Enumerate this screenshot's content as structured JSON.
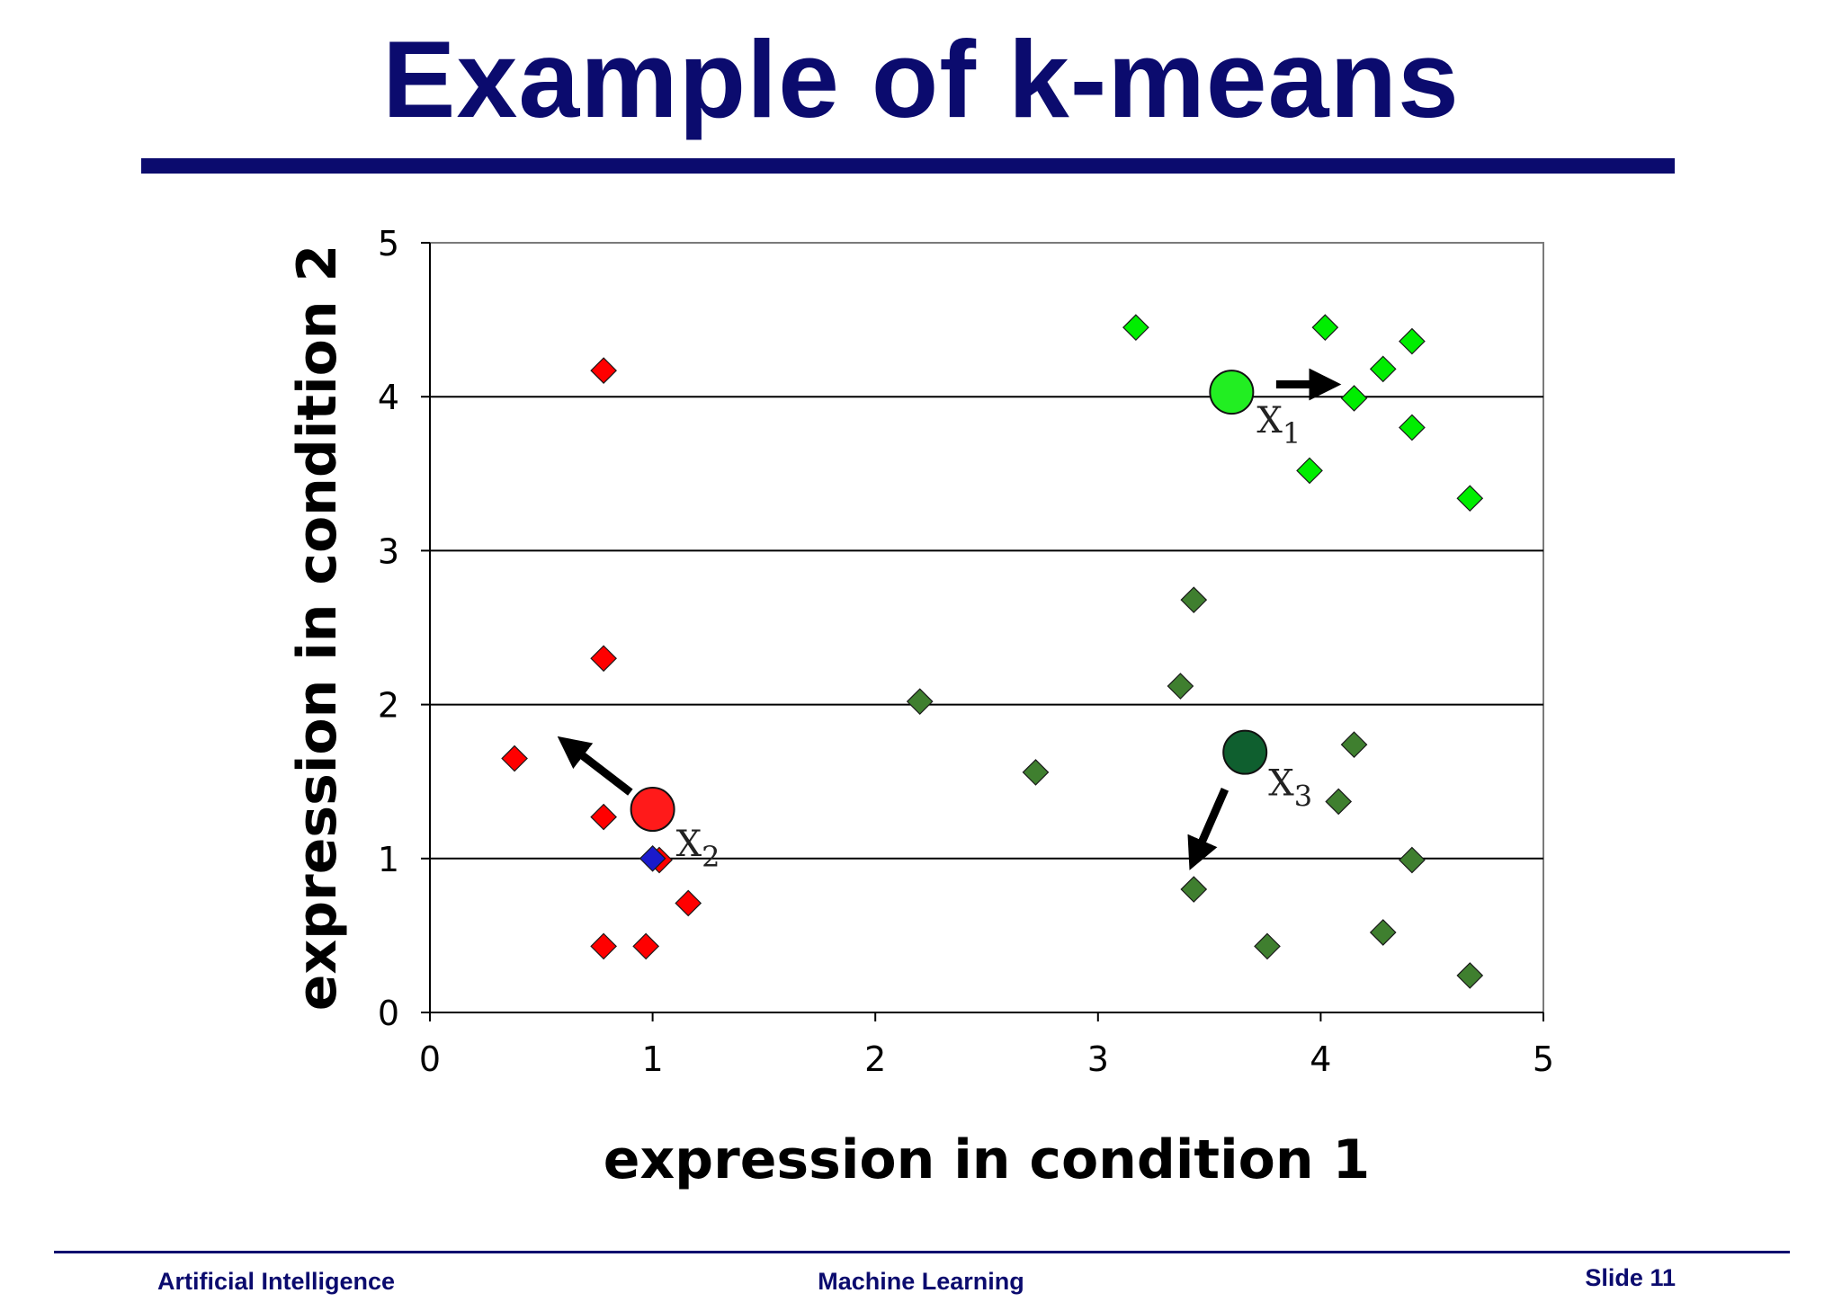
{
  "slide": {
    "title": "Example of k-means"
  },
  "footer": {
    "left": "Artificial Intelligence",
    "center": "Machine Learning",
    "right": "Slide 11"
  },
  "chart_data": {
    "type": "scatter",
    "title": "",
    "xlabel": "expression in condition 1",
    "ylabel": "expression in condition 2",
    "xlim": [
      0,
      5
    ],
    "ylim": [
      0,
      5
    ],
    "xticks": [
      "0",
      "1",
      "2",
      "3",
      "4",
      "5"
    ],
    "yticks": [
      "0",
      "1",
      "2",
      "3",
      "4",
      "5"
    ],
    "grid": "horizontal",
    "series": [
      {
        "color": "#ff0000",
        "marker": "diamond",
        "points": [
          [
            0.78,
            4.17
          ],
          [
            0.78,
            2.3
          ],
          [
            0.38,
            1.65
          ],
          [
            0.78,
            1.27
          ],
          [
            1.03,
            0.99
          ],
          [
            1.16,
            0.71
          ],
          [
            0.78,
            0.43
          ],
          [
            0.97,
            0.43
          ]
        ]
      },
      {
        "color": "#00ee00",
        "marker": "diamond",
        "points": [
          [
            3.17,
            4.45
          ],
          [
            4.02,
            4.45
          ],
          [
            4.41,
            4.36
          ],
          [
            4.28,
            4.18
          ],
          [
            4.15,
            3.99
          ],
          [
            4.41,
            3.8
          ],
          [
            3.95,
            3.52
          ],
          [
            4.67,
            3.34
          ]
        ]
      },
      {
        "color": "#3f7f2f",
        "marker": "diamond",
        "points": [
          [
            2.2,
            2.02
          ],
          [
            2.72,
            1.56
          ],
          [
            3.43,
            2.68
          ],
          [
            3.37,
            2.12
          ],
          [
            4.15,
            1.74
          ],
          [
            4.08,
            1.37
          ],
          [
            4.41,
            0.99
          ],
          [
            3.43,
            0.8
          ],
          [
            3.76,
            0.43
          ],
          [
            4.28,
            0.52
          ],
          [
            4.67,
            0.24
          ]
        ]
      },
      {
        "color": "#1a1acc",
        "marker": "diamond",
        "points": [
          [
            1.0,
            1.0
          ]
        ]
      }
    ],
    "centroids": [
      {
        "label": "X",
        "subscript": "1",
        "x": 3.6,
        "y": 4.03,
        "color": "#22ee22"
      },
      {
        "label": "X",
        "subscript": "2",
        "x": 1.0,
        "y": 1.32,
        "color": "#ff1a1a"
      },
      {
        "label": "X",
        "subscript": "3",
        "x": 3.66,
        "y": 1.69,
        "color": "#0f5f2f"
      }
    ],
    "arrows": [
      {
        "from": [
          3.8,
          4.08
        ],
        "to": [
          4.02,
          4.08
        ]
      },
      {
        "from": [
          0.9,
          1.43
        ],
        "to": [
          0.63,
          1.73
        ]
      },
      {
        "from": [
          3.57,
          1.45
        ],
        "to": [
          3.44,
          1.02
        ]
      }
    ]
  }
}
